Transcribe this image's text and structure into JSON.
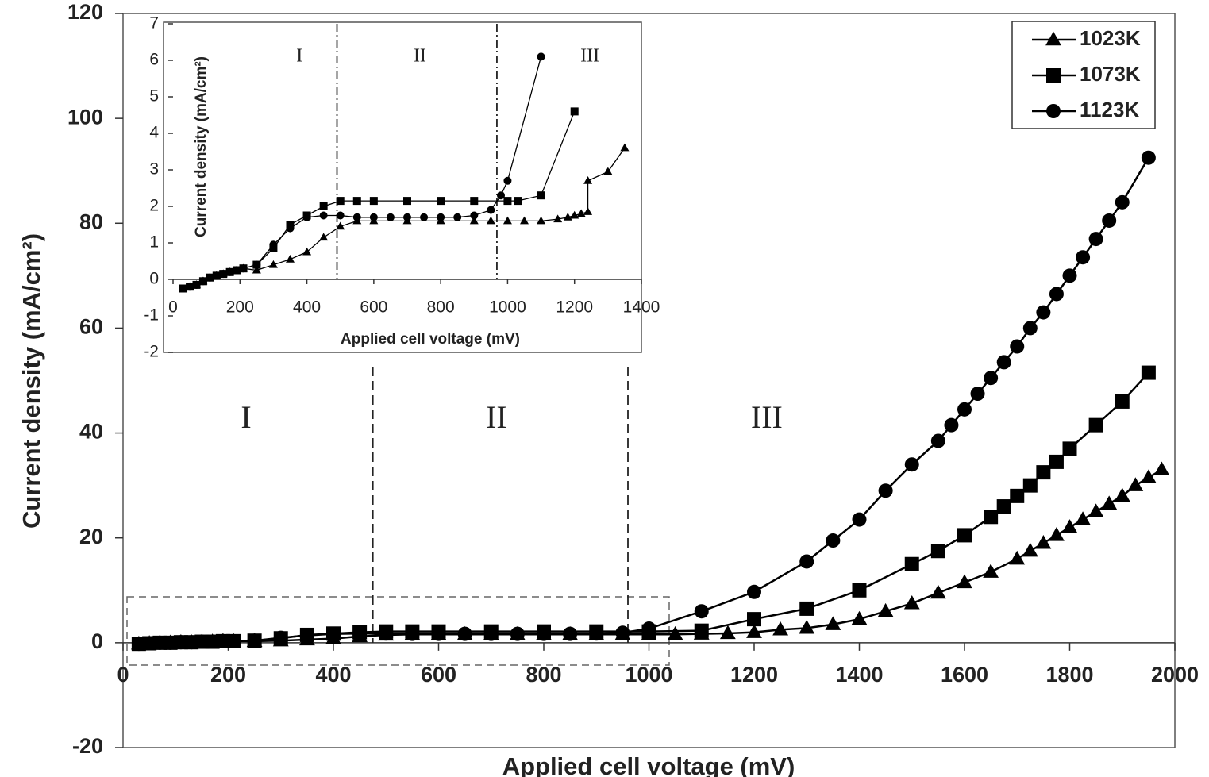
{
  "chart_data": [
    {
      "type": "line",
      "x_label": "Applied cell voltage (mV)",
      "y_label": "Current density (mA/cm²)",
      "xlim": [
        0,
        2000
      ],
      "ylim": [
        -20,
        120
      ],
      "xticks": [
        0,
        200,
        400,
        600,
        800,
        1000,
        1200,
        1400,
        1600,
        1800,
        2000
      ],
      "yticks": [
        -20,
        0,
        20,
        40,
        60,
        80,
        100,
        120
      ],
      "dividers": [
        475,
        960
      ],
      "divider_style": "dashed",
      "region_labels": [
        "I",
        "II",
        "III"
      ],
      "legend": "top-right",
      "series": [
        {
          "name": "1023K",
          "color": "#000000",
          "marker": "triangle",
          "x": [
            30,
            50,
            70,
            90,
            110,
            130,
            150,
            170,
            190,
            210,
            250,
            300,
            350,
            400,
            450,
            500,
            550,
            600,
            650,
            700,
            750,
            800,
            850,
            900,
            950,
            1000,
            1050,
            1100,
            1150,
            1200,
            1250,
            1300,
            1350,
            1400,
            1450,
            1500,
            1550,
            1600,
            1650,
            1700,
            1725,
            1750,
            1775,
            1800,
            1825,
            1850,
            1875,
            1900,
            1925,
            1950,
            1975
          ],
          "values": [
            -0.2,
            -0.1,
            0,
            0,
            0.1,
            0.1,
            0.2,
            0.2,
            0.3,
            0.3,
            0.3,
            0.4,
            0.6,
            0.8,
            1.2,
            1.5,
            1.6,
            1.6,
            1.6,
            1.6,
            1.6,
            1.6,
            1.6,
            1.6,
            1.6,
            1.6,
            1.6,
            1.7,
            1.8,
            2,
            2.5,
            2.8,
            3.5,
            4.5,
            6,
            7.5,
            9.5,
            11.5,
            13.5,
            16,
            17.5,
            19,
            20.5,
            22,
            23.5,
            25,
            26.5,
            28,
            30,
            31.5,
            33
          ]
        },
        {
          "name": "1073K",
          "color": "#000000",
          "marker": "square",
          "x": [
            30,
            50,
            70,
            90,
            110,
            130,
            150,
            170,
            190,
            210,
            250,
            300,
            350,
            400,
            450,
            500,
            550,
            600,
            700,
            800,
            900,
            1000,
            1100,
            1200,
            1300,
            1400,
            1500,
            1550,
            1600,
            1650,
            1675,
            1700,
            1725,
            1750,
            1775,
            1800,
            1850,
            1900,
            1950
          ],
          "values": [
            -0.2,
            -0.1,
            0,
            0,
            0.1,
            0.1,
            0.2,
            0.2,
            0.3,
            0.3,
            0.4,
            0.85,
            1.5,
            1.75,
            2,
            2.15,
            2.15,
            2.15,
            2.15,
            2.15,
            2.15,
            2.15,
            2.3,
            4.5,
            6.5,
            10,
            15,
            17.5,
            20.5,
            24,
            26,
            28,
            30,
            32.5,
            34.5,
            37,
            41.5,
            46,
            51.5
          ]
        },
        {
          "name": "1123K",
          "color": "#000000",
          "marker": "circle",
          "x": [
            30,
            50,
            70,
            90,
            110,
            130,
            150,
            170,
            190,
            210,
            250,
            300,
            350,
            400,
            450,
            500,
            550,
            600,
            650,
            700,
            750,
            800,
            850,
            900,
            950,
            1000,
            1100,
            1200,
            1300,
            1350,
            1400,
            1450,
            1500,
            1550,
            1575,
            1600,
            1625,
            1650,
            1675,
            1700,
            1725,
            1750,
            1775,
            1800,
            1825,
            1850,
            1875,
            1900,
            1950
          ],
          "values": [
            -0.2,
            -0.1,
            0,
            0,
            0.1,
            0.1,
            0.2,
            0.2,
            0.3,
            0.3,
            0.4,
            0.95,
            1.4,
            1.7,
            1.75,
            1.75,
            1.7,
            1.7,
            1.7,
            1.7,
            1.7,
            1.7,
            1.7,
            1.75,
            1.9,
            2.7,
            6,
            9.7,
            15.5,
            19.5,
            23.5,
            29,
            34,
            38.5,
            41.5,
            44.5,
            47.5,
            50.5,
            53.5,
            56.5,
            60,
            63,
            66.5,
            70,
            73.5,
            77,
            80.5,
            84,
            92.5
          ]
        }
      ]
    },
    {
      "type": "line",
      "x_label": "Applied cell voltage (mV)",
      "y_label": "Current density (mA/cm²)",
      "xlim": [
        0,
        1400
      ],
      "ylim": [
        -2,
        7
      ],
      "xticks": [
        0,
        200,
        400,
        600,
        800,
        1000,
        1200,
        1400
      ],
      "yticks": [
        -2,
        -1,
        0,
        1,
        2,
        3,
        4,
        5,
        6,
        7
      ],
      "dividers": [
        490,
        968
      ],
      "divider_style": "dashdot",
      "region_labels": [
        "I",
        "II",
        "III"
      ],
      "series": [
        {
          "name": "1023K",
          "color": "#000000",
          "marker": "triangle",
          "x": [
            30,
            50,
            70,
            90,
            110,
            130,
            150,
            170,
            190,
            210,
            250,
            300,
            350,
            400,
            450,
            500,
            550,
            600,
            700,
            800,
            900,
            950,
            1000,
            1050,
            1100,
            1150,
            1180,
            1200,
            1220,
            1240,
            1240,
            1300,
            1350
          ],
          "values": [
            -0.25,
            -0.2,
            -0.15,
            -0.05,
            0.05,
            0.1,
            0.15,
            0.2,
            0.25,
            0.3,
            0.25,
            0.4,
            0.55,
            0.75,
            1.15,
            1.45,
            1.6,
            1.6,
            1.6,
            1.6,
            1.6,
            1.6,
            1.6,
            1.6,
            1.6,
            1.65,
            1.7,
            1.75,
            1.8,
            1.85,
            2.7,
            2.95,
            3.6
          ]
        },
        {
          "name": "1073K",
          "color": "#000000",
          "marker": "square",
          "x": [
            30,
            50,
            70,
            90,
            110,
            130,
            150,
            170,
            190,
            210,
            250,
            300,
            350,
            400,
            450,
            500,
            550,
            600,
            700,
            800,
            900,
            1000,
            1030,
            1100,
            1200
          ],
          "values": [
            -0.25,
            -0.2,
            -0.15,
            -0.05,
            0.05,
            0.1,
            0.15,
            0.2,
            0.25,
            0.3,
            0.4,
            0.85,
            1.5,
            1.75,
            2,
            2.15,
            2.15,
            2.15,
            2.15,
            2.15,
            2.15,
            2.15,
            2.15,
            2.3,
            4.6
          ]
        },
        {
          "name": "1123K",
          "color": "#000000",
          "marker": "circle",
          "x": [
            30,
            50,
            70,
            90,
            110,
            130,
            150,
            170,
            190,
            210,
            250,
            300,
            350,
            400,
            450,
            500,
            550,
            600,
            650,
            700,
            750,
            800,
            850,
            900,
            950,
            980,
            1000,
            1100
          ],
          "values": [
            -0.25,
            -0.2,
            -0.15,
            -0.05,
            0.05,
            0.1,
            0.15,
            0.2,
            0.25,
            0.3,
            0.4,
            0.95,
            1.4,
            1.7,
            1.75,
            1.75,
            1.7,
            1.7,
            1.7,
            1.7,
            1.7,
            1.7,
            1.7,
            1.75,
            1.9,
            2.3,
            2.7,
            6.1
          ]
        }
      ]
    }
  ]
}
